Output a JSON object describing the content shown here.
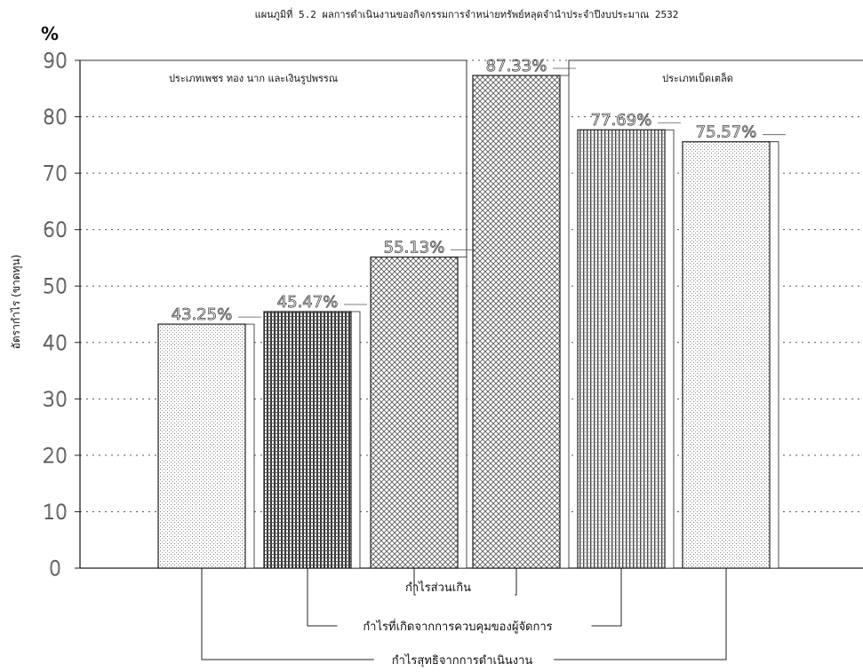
{
  "title": "แผนภูมิที่ 5.2 ผลการดำเนินงานของกิจกรรมการจำหน่ายทรัพย์หลุดจำนำประจำปีงบประมาณ 2532",
  "unit_symbol": "%",
  "colors": {
    "axis": "#222222",
    "grid": "#555555",
    "frame": "#333333",
    "bar_outline": "#222222"
  },
  "chart_data": {
    "type": "bar",
    "title": "แผนภูมิที่ 5.2 ผลการดำเนินงานของกิจกรรมการจำหน่ายทรัพย์หลุดจำนำประจำปีงบประมาณ 2532",
    "ylabel": "อัตรากำไร (ขาดทุน)",
    "xlabel": "",
    "ylim": [
      0,
      90
    ],
    "yticks": [
      0,
      10,
      20,
      30,
      40,
      50,
      60,
      70,
      80,
      90
    ],
    "grid": true,
    "groups": [
      {
        "label": "ประเภทเพชร ทอง นาก และเงินรูปพรรณ",
        "bars": [
          {
            "value": 43.25,
            "label": "43.25%",
            "pattern": "dots-light",
            "measure": "กำไรสุทธิจากการดำเนินงาน"
          },
          {
            "value": 45.47,
            "label": "45.47%",
            "pattern": "grid-dense",
            "measure": "กำไรที่เกิดจากการควบคุมของผู้จัดการ"
          },
          {
            "value": 55.13,
            "label": "55.13%",
            "pattern": "crosshatch",
            "measure": "กำไรส่วนเกิน"
          }
        ]
      },
      {
        "label": "ประเภทเบ็ดเตล็ด",
        "bars": [
          {
            "value": 87.33,
            "label": "87.33%",
            "pattern": "crosshatch",
            "measure": "กำไรส่วนเกิน"
          },
          {
            "value": 77.69,
            "label": "77.69%",
            "pattern": "vertical-lines",
            "measure": "กำไรที่เกิดจากการควบคุมของผู้จัดการ"
          },
          {
            "value": 75.57,
            "label": "75.57%",
            "pattern": "dots-light",
            "measure": "กำไรสุทธิจากการดำเนินงาน"
          }
        ]
      }
    ],
    "brackets": [
      {
        "label": "กำไรส่วนเกิน",
        "pair": [
          2,
          3
        ]
      },
      {
        "label": "กำไรที่เกิดจากการควบคุมของผู้จัดการ",
        "pair": [
          1,
          4
        ]
      },
      {
        "label": "กำไรสุทธิจากการดำเนินงาน",
        "pair": [
          0,
          5
        ]
      }
    ]
  }
}
